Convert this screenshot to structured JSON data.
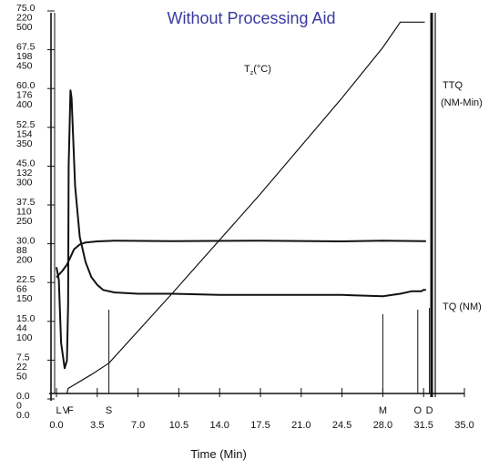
{
  "chart_data": {
    "type": "line",
    "title": "Without Processing Aid",
    "xlabel": "Time (Min)",
    "xlim": [
      0,
      35
    ],
    "x_ticks": [
      "0.0",
      "3.5",
      "7.0",
      "10.5",
      "14.0",
      "17.5",
      "21.0",
      "24.5",
      "28.0",
      "31.5",
      "35.0"
    ],
    "y_axis_label_groups": [
      [
        "75.0",
        "220",
        "500"
      ],
      [
        "67.5",
        "198",
        "450"
      ],
      [
        "60.0",
        "176",
        "400"
      ],
      [
        "52.5",
        "154",
        "350"
      ],
      [
        "45.0",
        "132",
        "300"
      ],
      [
        "37.5",
        "110",
        "250"
      ],
      [
        "30.0",
        "88",
        "200"
      ],
      [
        "22.5",
        "66",
        "150"
      ],
      [
        "15.0",
        "44",
        "100"
      ],
      [
        "7.5",
        "22",
        "50"
      ],
      [
        "0.0",
        "0",
        "0.0"
      ]
    ],
    "event_markers": [
      {
        "label": "L",
        "x": 0.2
      },
      {
        "label": "V",
        "x": 0.8
      },
      {
        "label": "F",
        "x": 1.2
      },
      {
        "label": "S",
        "x": 4.5
      },
      {
        "label": "M",
        "x": 28.0
      },
      {
        "label": "O",
        "x": 31.0
      },
      {
        "label": "D",
        "x": 32.0
      }
    ],
    "annotations": {
      "temperature": "T",
      "temperature_sub": "z",
      "temperature_unit": "(°C)",
      "ttq": "TTQ",
      "ttq_unit": "(NM-Min)",
      "tq": "TQ (NM)"
    },
    "series": [
      {
        "name": "TQ (NM)",
        "x": [
          0.0,
          0.2,
          0.4,
          0.7,
          0.9,
          1.0,
          1.05,
          1.2,
          1.3,
          1.6,
          2.0,
          2.5,
          3.0,
          3.5,
          4.0,
          5.0,
          7.0,
          10.0,
          14.0,
          17.5,
          21.0,
          24.5,
          28.0,
          29.5,
          30.5,
          31.3,
          31.5,
          31.7
        ],
        "y": [
          50,
          45,
          20,
          10,
          13,
          35,
          90,
          120,
          117,
          82,
          62,
          52,
          46,
          43,
          41,
          40,
          39.5,
          39.5,
          39,
          39,
          39,
          39,
          38.5,
          39.5,
          40.5,
          40.5,
          41,
          41
        ]
      },
      {
        "name": "TTQ (NM-Min)",
        "x": [
          0.0,
          0.2,
          0.5,
          0.9,
          1.2,
          1.5,
          2.0,
          2.5,
          3.5,
          5.0,
          10.0,
          17.5,
          24.5,
          28.0,
          31.5,
          31.7
        ],
        "y": [
          46,
          47,
          48.5,
          51,
          54,
          57,
          59,
          59.8,
          60.2,
          60.5,
          60.3,
          60.5,
          60.2,
          60.5,
          60.3,
          60.3
        ]
      },
      {
        "name": "T (°C)",
        "x": [
          0.9,
          1.0,
          3.0,
          4.5,
          10.0,
          17.5,
          24.5,
          28.0,
          29.5,
          31.5,
          31.6
        ],
        "y": [
          0,
          2,
          7.5,
          12,
          40,
          79,
          117,
          137,
          147,
          147,
          147
        ]
      }
    ]
  }
}
